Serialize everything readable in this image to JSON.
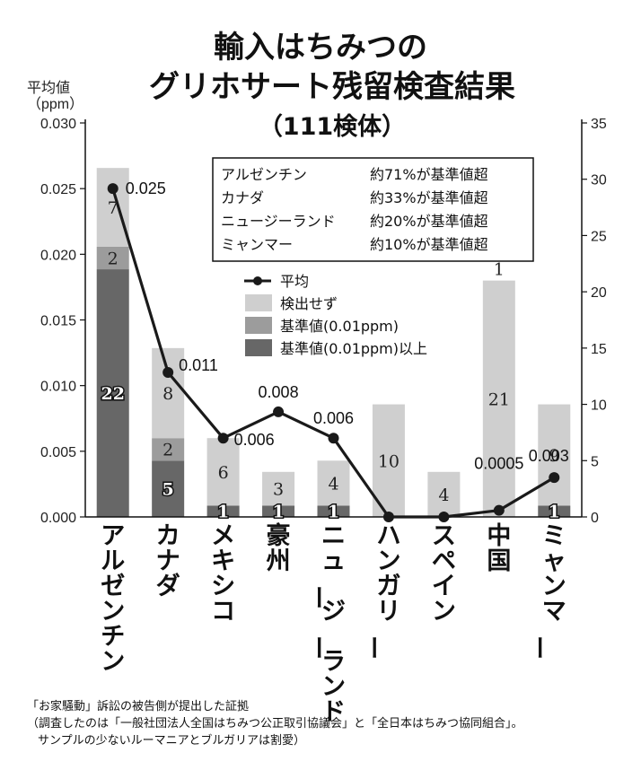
{
  "title_lines": [
    "輸入はちみつの",
    "グリホサート残留検査結果",
    "（111検体）"
  ],
  "y_left_label_lines": [
    "平均値",
    "（ppm）"
  ],
  "colors": {
    "not_detected": "#cfcfcf",
    "at_standard": "#9c9c9c",
    "above_standard": "#676767",
    "line": "#1a1a1a"
  },
  "info_box": [
    {
      "country": "アルゼンチン",
      "text": "約71%が基準値超"
    },
    {
      "country": "カナダ",
      "text": "約33%が基準値超"
    },
    {
      "country": "ニュージーランド",
      "text": "約20%が基準値超"
    },
    {
      "country": "ミャンマー",
      "text": "約10%が基準値超"
    }
  ],
  "legend": {
    "average": "平均",
    "not_detected": "検出せず",
    "at_standard": "基準値(0.01ppm)",
    "above_standard": "基準値(0.01ppm)以上"
  },
  "footnote": [
    "「お家騒動」訴訟の被告側が提出した証拠",
    "（調査したのは「一般社団法人全国はちみつ公正取引協議会」と「全日本はちみつ協同組合」。",
    "サンプルの少ないルーマニアとブルガリアは割愛）"
  ],
  "chart_data": {
    "type": "bar",
    "stacked": true,
    "categories": [
      "アルゼンチン",
      "カナダ",
      "メキシコ",
      "豪州",
      "ニュージーランド",
      "ハンガリー",
      "スペイン",
      "中国",
      "ミャンマー"
    ],
    "series": [
      {
        "name": "基準値(0.01ppm)以上",
        "values": [
          22,
          5,
          1,
          1,
          1,
          0,
          0,
          0,
          1
        ]
      },
      {
        "name": "基準値(0.01ppm)",
        "values": [
          2,
          2,
          0,
          0,
          0,
          0,
          0,
          0,
          0
        ]
      },
      {
        "name": "検出せず",
        "values": [
          7,
          8,
          6,
          3,
          4,
          10,
          4,
          21,
          9
        ]
      }
    ],
    "bar_top_labels": [
      "",
      "",
      "",
      "",
      "",
      "",
      "",
      "1",
      ""
    ],
    "line": {
      "name": "平均",
      "values": [
        0.025,
        0.011,
        0.006,
        0.008,
        0.006,
        0.0,
        0.0,
        0.0005,
        0.003
      ],
      "labels": [
        "0.025",
        "0.011",
        "0.006",
        "0.008",
        "0.006",
        "",
        "",
        "0.0005",
        "0.003"
      ]
    },
    "y_left": {
      "ylim": [
        0,
        0.03
      ],
      "ticks": [
        "0.000",
        "0.005",
        "0.010",
        "0.015",
        "0.020",
        "0.025",
        "0.030"
      ]
    },
    "y_right": {
      "ylim": [
        0,
        35
      ],
      "ticks": [
        "0",
        "5",
        "10",
        "15",
        "20",
        "25",
        "30",
        "35"
      ]
    }
  }
}
